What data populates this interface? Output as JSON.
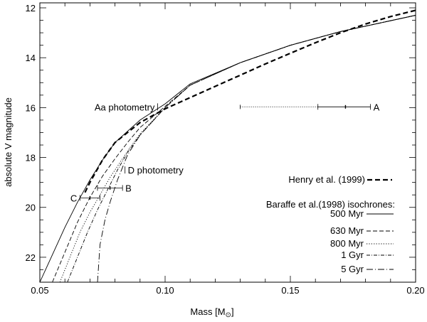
{
  "chart_data": {
    "type": "line",
    "xlabel": "Mass [M",
    "xlabel_sub": "⊙",
    "xlabel_close": "]",
    "ylabel": "absolute V magnitude",
    "xlim": [
      0.05,
      0.2
    ],
    "ylim": [
      23.0,
      11.8
    ],
    "y_inverted": true,
    "grid": false,
    "x_major_ticks": [
      0.05,
      0.1,
      0.15,
      0.2
    ],
    "x_tick_labels": [
      "0.05",
      "0.10",
      "0.15",
      "0.20"
    ],
    "y_major_ticks": [
      12,
      14,
      16,
      18,
      20,
      22
    ],
    "y_tick_labels": [
      "12",
      "14",
      "16",
      "18",
      "20",
      "22"
    ],
    "legend_placement": "lower-right",
    "series": [
      {
        "name": "Henry et al. (1999)",
        "style": "bold-dashed",
        "x": [
          0.068,
          0.07,
          0.075,
          0.08,
          0.09,
          0.1,
          0.11,
          0.12,
          0.13,
          0.14,
          0.15,
          0.16,
          0.17,
          0.18,
          0.19,
          0.2
        ],
        "y": [
          19.4,
          19.0,
          18.1,
          17.4,
          16.6,
          16.05,
          15.6,
          15.15,
          14.7,
          14.25,
          13.82,
          13.4,
          13.0,
          12.65,
          12.35,
          12.1
        ]
      },
      {
        "name": "500 Myr",
        "style": "solid",
        "x": [
          0.05,
          0.055,
          0.06,
          0.065,
          0.07,
          0.075,
          0.08,
          0.09,
          0.1,
          0.11,
          0.13,
          0.15,
          0.17,
          0.2
        ],
        "y": [
          23.0,
          21.9,
          20.8,
          19.8,
          18.9,
          18.1,
          17.4,
          16.5,
          15.85,
          15.05,
          14.2,
          13.5,
          12.95,
          12.3
        ]
      },
      {
        "name": "630 Myr",
        "style": "dashed",
        "x": [
          0.055,
          0.06,
          0.065,
          0.07,
          0.075,
          0.08,
          0.085,
          0.09,
          0.1,
          0.11,
          0.13,
          0.15,
          0.17,
          0.2
        ],
        "y": [
          23.0,
          21.8,
          20.6,
          19.6,
          18.75,
          18.05,
          17.4,
          16.8,
          15.95,
          15.1,
          14.2,
          13.5,
          12.95,
          12.3
        ]
      },
      {
        "name": "800 Myr",
        "style": "dotted",
        "x": [
          0.058,
          0.062,
          0.066,
          0.07,
          0.074,
          0.078,
          0.082,
          0.086,
          0.09,
          0.1,
          0.11,
          0.13,
          0.15,
          0.17,
          0.2
        ],
        "y": [
          23.0,
          22.0,
          21.0,
          20.2,
          19.5,
          18.8,
          18.2,
          17.6,
          17.05,
          16.0,
          15.1,
          14.2,
          13.5,
          12.95,
          12.3
        ]
      },
      {
        "name": "1 Gyr",
        "style": "dash-dot",
        "x": [
          0.061,
          0.065,
          0.069,
          0.073,
          0.077,
          0.081,
          0.085,
          0.09,
          0.1,
          0.11,
          0.13,
          0.15,
          0.17,
          0.2
        ],
        "y": [
          23.0,
          22.0,
          21.0,
          20.1,
          19.3,
          18.5,
          17.8,
          17.1,
          16.0,
          15.1,
          14.2,
          13.5,
          12.95,
          12.3
        ]
      },
      {
        "name": "5 Gyr",
        "style": "long-dash-dot",
        "x": [
          0.073,
          0.074,
          0.076,
          0.078,
          0.081,
          0.085,
          0.09,
          0.1,
          0.11,
          0.13,
          0.15,
          0.17,
          0.2
        ],
        "y": [
          23.0,
          21.5,
          20.5,
          19.8,
          18.9,
          17.9,
          17.1,
          16.0,
          15.1,
          14.2,
          13.5,
          12.95,
          12.3
        ]
      }
    ],
    "points": [
      {
        "label": "A",
        "x": 0.172,
        "y": 15.97,
        "xerr": [
          0.161,
          0.182
        ],
        "xerr_extended": [
          0.13,
          0.161
        ]
      },
      {
        "label": "B",
        "x": 0.078,
        "y": 19.22,
        "xerr": [
          0.073,
          0.083
        ]
      },
      {
        "label": "C",
        "x": 0.07,
        "y": 19.62,
        "xerr": [
          0.066,
          0.074
        ]
      }
    ],
    "annotations": [
      {
        "text": "Aa photometry",
        "x": 0.097,
        "y": 15.97
      },
      {
        "text": "D photometry",
        "x": 0.084,
        "y": 18.5
      }
    ],
    "legend": {
      "henry_label": "Henry et al. (1999)",
      "baraffe_title": "Baraffe et al.(1998) isochrones:",
      "items": [
        "500 Myr",
        "630 Myr",
        "800 Myr",
        "1 Gyr",
        "5 Gyr"
      ]
    }
  }
}
